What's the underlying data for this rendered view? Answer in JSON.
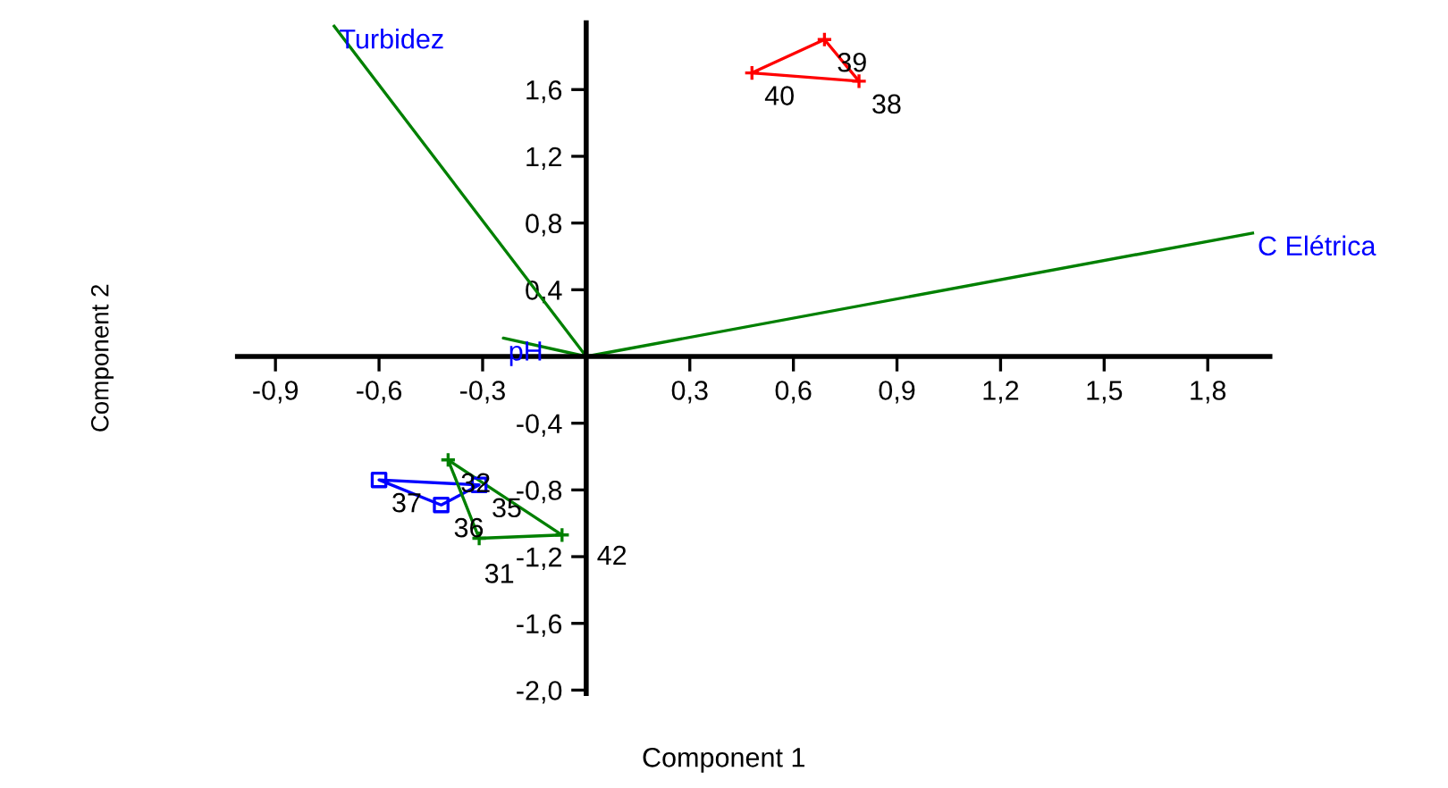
{
  "chart_data": {
    "type": "scatter",
    "xlabel": "Component 1",
    "ylabel": "Component 2",
    "xlim": [
      -1.01,
      1.98
    ],
    "ylim": [
      -2.02,
      2.0
    ],
    "xticks": [
      {
        "value": -0.9,
        "label": "-0,9"
      },
      {
        "value": -0.6,
        "label": "-0,6"
      },
      {
        "value": -0.3,
        "label": "-0,3"
      },
      {
        "value": 0.3,
        "label": "0,3"
      },
      {
        "value": 0.6,
        "label": "0,6"
      },
      {
        "value": 0.9,
        "label": "0,9"
      },
      {
        "value": 1.2,
        "label": "1,2"
      },
      {
        "value": 1.5,
        "label": "1,5"
      },
      {
        "value": 1.8,
        "label": "1,8"
      }
    ],
    "yticks": [
      {
        "value": -2.0,
        "label": "-2,0"
      },
      {
        "value": -1.6,
        "label": "-1,6"
      },
      {
        "value": -1.2,
        "label": "-1,2"
      },
      {
        "value": -0.8,
        "label": "-0,8"
      },
      {
        "value": -0.4,
        "label": "-0,4"
      },
      {
        "value": 0.4,
        "label": "0,4"
      },
      {
        "value": 0.8,
        "label": "0,8"
      },
      {
        "value": 1.2,
        "label": "1,2"
      },
      {
        "value": 1.6,
        "label": "1,6"
      }
    ],
    "grid": false,
    "legend": false,
    "series": [
      {
        "color": "#ff0000",
        "marker": "cross",
        "line_style": "solid",
        "x": [
          0.79,
          0.69,
          0.48
        ],
        "values": [
          1.65,
          1.9,
          1.7
        ]
      },
      {
        "color": "#0000ff",
        "marker": "square",
        "line_style": "solid",
        "x": [
          -0.31,
          -0.42,
          -0.6
        ],
        "values": [
          -0.77,
          -0.89,
          -0.74
        ]
      },
      {
        "color": "#008000",
        "marker": "cross",
        "line_style": "solid",
        "x": [
          -0.31,
          -0.07,
          -0.4
        ],
        "values": [
          -1.09,
          -1.07,
          -0.62
        ]
      },
      {
        "type": "line",
        "color": "#008000",
        "marker": "none",
        "x": [
          -0.73,
          0,
          -0.24,
          0,
          1.93
        ],
        "values": [
          1.98,
          0,
          0.11,
          0,
          0.74
        ]
      }
    ],
    "annotations": [
      {
        "text": "Turbidez",
        "x": -0.73,
        "y": 1.98
      },
      {
        "text": "pH",
        "x": -0.24,
        "y": 0.11
      },
      {
        "text": "C Elétrica",
        "x": 1.93,
        "y": 0.74
      },
      {
        "text": "38",
        "x": 0.79,
        "y": 1.65
      },
      {
        "text": "39",
        "x": 0.69,
        "y": 1.9
      },
      {
        "text": "40",
        "x": 0.48,
        "y": 1.7
      },
      {
        "text": "35",
        "x": -0.31,
        "y": -0.77
      },
      {
        "text": "36",
        "x": -0.42,
        "y": -0.89
      },
      {
        "text": "37",
        "x": -0.6,
        "y": -0.74
      },
      {
        "text": "31",
        "x": -0.31,
        "y": -1.09
      },
      {
        "text": "42",
        "x": -0.07,
        "y": -1.07
      },
      {
        "text": "32",
        "x": -0.4,
        "y": -0.62
      }
    ]
  }
}
